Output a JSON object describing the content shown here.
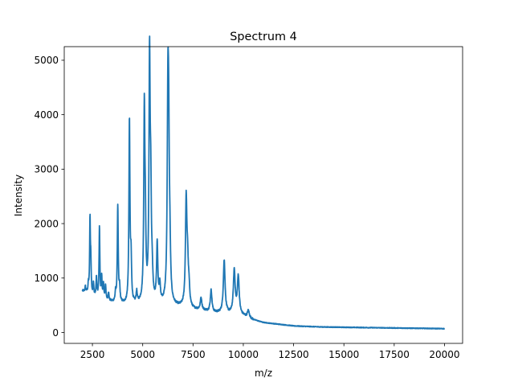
{
  "chart_data": {
    "type": "line",
    "title": "Spectrum 4",
    "xlabel": "m/z",
    "ylabel": "Intensity",
    "xlim": [
      1100,
      20900
    ],
    "ylim": [
      -200,
      5250
    ],
    "xticks": [
      2500,
      5000,
      7500,
      10000,
      12500,
      15000,
      17500,
      20000
    ],
    "xtick_labels": [
      "2500",
      "5000",
      "7500",
      "10000",
      "12500",
      "15000",
      "17500",
      "20000"
    ],
    "yticks": [
      0,
      1000,
      2000,
      3000,
      4000,
      5000
    ],
    "ytick_labels": [
      "0",
      "1000",
      "2000",
      "3000",
      "4000",
      "5000"
    ],
    "grid": false,
    "line_color": "#1f77b4",
    "series": [
      {
        "baseline": [
          [
            2000,
            760
          ],
          [
            2200,
            740
          ],
          [
            2600,
            660
          ],
          [
            3000,
            610
          ],
          [
            3500,
            550
          ],
          [
            4000,
            520
          ],
          [
            4500,
            500
          ],
          [
            5000,
            520
          ],
          [
            5500,
            520
          ],
          [
            6000,
            510
          ],
          [
            6500,
            480
          ],
          [
            7000,
            460
          ],
          [
            7500,
            420
          ],
          [
            8000,
            400
          ],
          [
            8500,
            360
          ],
          [
            9000,
            350
          ],
          [
            9500,
            330
          ],
          [
            10000,
            300
          ],
          [
            10500,
            230
          ],
          [
            11000,
            180
          ],
          [
            11500,
            160
          ],
          [
            12000,
            140
          ],
          [
            12500,
            120
          ],
          [
            13000,
            112
          ],
          [
            14000,
            100
          ],
          [
            15000,
            95
          ],
          [
            16000,
            90
          ],
          [
            17000,
            85
          ],
          [
            18000,
            80
          ],
          [
            19000,
            75
          ],
          [
            20000,
            70
          ]
        ],
        "peaks": [
          [
            2150,
            90
          ],
          [
            2300,
            150
          ],
          [
            2380,
            1350
          ],
          [
            2420,
            550
          ],
          [
            2550,
            220
          ],
          [
            2700,
            350
          ],
          [
            2850,
            1300
          ],
          [
            2960,
            380
          ],
          [
            3050,
            250
          ],
          [
            3150,
            270
          ],
          [
            3300,
            150
          ],
          [
            3650,
            160
          ],
          [
            3760,
            1780
          ],
          [
            3850,
            250
          ],
          [
            4340,
            3350
          ],
          [
            4420,
            750
          ],
          [
            4700,
            200
          ],
          [
            5080,
            3420
          ],
          [
            5130,
            1100
          ],
          [
            5340,
            4380
          ],
          [
            5400,
            1700
          ],
          [
            5470,
            400
          ],
          [
            5720,
            1070
          ],
          [
            5850,
            300
          ],
          [
            6250,
            3250
          ],
          [
            6290,
            2520
          ],
          [
            6350,
            700
          ],
          [
            7160,
            1920
          ],
          [
            7230,
            690
          ],
          [
            7300,
            300
          ],
          [
            7900,
            220
          ],
          [
            8400,
            400
          ],
          [
            9050,
            970
          ],
          [
            9550,
            800
          ],
          [
            9750,
            700
          ],
          [
            10250,
            130
          ]
        ]
      }
    ]
  }
}
